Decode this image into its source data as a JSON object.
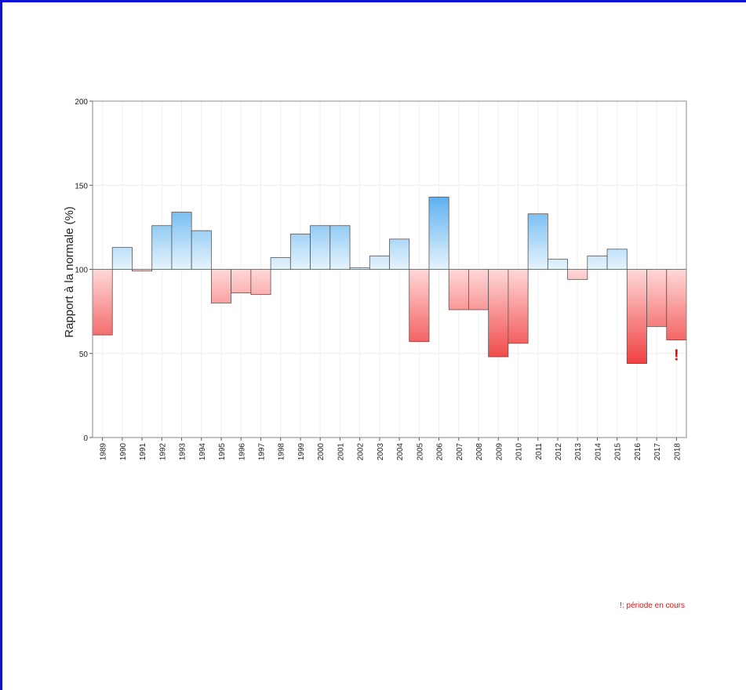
{
  "chart_data": {
    "type": "bar",
    "ylabel": "Rapport à la normale (%)",
    "categories": [
      "1989",
      "1990",
      "1991",
      "1992",
      "1993",
      "1994",
      "1995",
      "1996",
      "1997",
      "1998",
      "1999",
      "2000",
      "2001",
      "2002",
      "2003",
      "2004",
      "2005",
      "2006",
      "2007",
      "2008",
      "2009",
      "2010",
      "2011",
      "2012",
      "2013",
      "2014",
      "2015",
      "2016",
      "2017",
      "2018"
    ],
    "values": [
      61,
      113,
      99,
      126,
      134,
      123,
      80,
      86,
      85,
      107,
      121,
      126,
      126,
      101,
      108,
      118,
      57,
      143,
      76,
      76,
      48,
      56,
      133,
      106,
      94,
      108,
      112,
      44,
      66,
      58
    ],
    "baseline": 100,
    "ylim": [
      0,
      200
    ],
    "yticks": [
      0,
      50,
      100,
      150,
      200
    ],
    "grid": true,
    "above_color": "#5aaff0",
    "below_color": "#f04040",
    "marker": "!",
    "marker_color": "#e01010",
    "footnote": "!: période en cours"
  }
}
